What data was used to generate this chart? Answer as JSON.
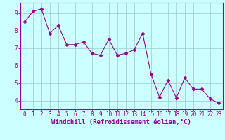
{
  "x": [
    0,
    1,
    2,
    3,
    4,
    5,
    6,
    7,
    8,
    9,
    10,
    11,
    12,
    13,
    14,
    15,
    16,
    17,
    18,
    19,
    20,
    21,
    22,
    23
  ],
  "y": [
    8.5,
    9.1,
    9.25,
    7.85,
    8.3,
    7.2,
    7.2,
    7.35,
    6.7,
    6.6,
    7.5,
    6.6,
    6.7,
    6.9,
    7.85,
    5.5,
    4.2,
    5.15,
    4.15,
    5.3,
    4.65,
    4.65,
    4.1,
    3.85
  ],
  "line_color": "#990099",
  "marker": "D",
  "marker_size": 2.5,
  "bg_color": "#ccffff",
  "grid_color": "#99cccc",
  "xlabel": "Windchill (Refroidissement éolien,°C)",
  "xlabel_color": "#990099",
  "tick_color": "#990099",
  "spine_color": "#990099",
  "ylim": [
    3.5,
    9.6
  ],
  "xlim": [
    -0.5,
    23.5
  ],
  "yticks": [
    4,
    5,
    6,
    7,
    8,
    9
  ],
  "xticks": [
    0,
    1,
    2,
    3,
    4,
    5,
    6,
    7,
    8,
    9,
    10,
    11,
    12,
    13,
    14,
    15,
    16,
    17,
    18,
    19,
    20,
    21,
    22,
    23
  ],
  "tick_fontsize": 5.5,
  "xlabel_fontsize": 6.5,
  "linewidth": 0.8
}
